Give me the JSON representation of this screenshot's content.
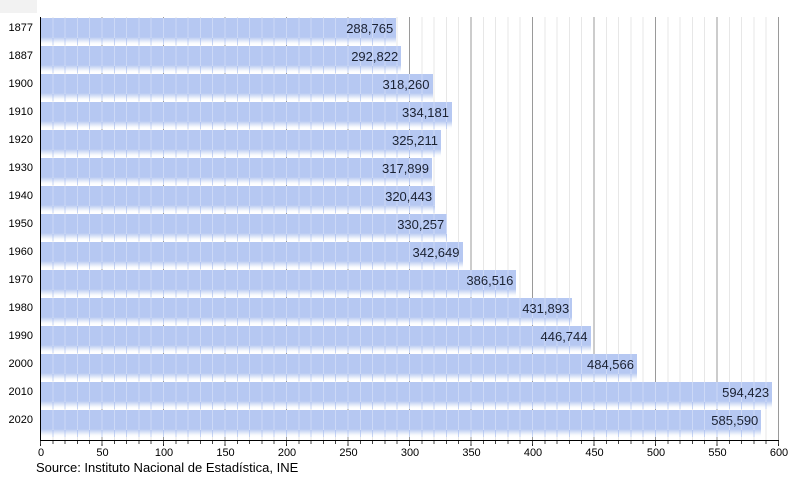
{
  "chart_data": {
    "type": "bar",
    "orientation": "horizontal",
    "title": "",
    "categories": [
      "1877",
      "1887",
      "1900",
      "1910",
      "1920",
      "1930",
      "1940",
      "1950",
      "1960",
      "1970",
      "1980",
      "1990",
      "2000",
      "2010",
      "2020"
    ],
    "values": [
      288765,
      292822,
      318260,
      334181,
      325211,
      317899,
      320443,
      330257,
      342649,
      386516,
      431893,
      446744,
      484566,
      594423,
      585590
    ],
    "value_labels": [
      "288,765",
      "292,822",
      "318,260",
      "334,181",
      "325,211",
      "317,899",
      "320,443",
      "330,257",
      "342,649",
      "386,516",
      "431,893",
      "446,744",
      "484,566",
      "594,423",
      "585,590"
    ],
    "xlim": [
      0,
      600
    ],
    "x_major_ticks": [
      0,
      50,
      100,
      150,
      200,
      250,
      300,
      350,
      400,
      450,
      500,
      550,
      600
    ],
    "x_minor_step": 10,
    "x_value_divisor": 1000,
    "grid": true,
    "legend": null,
    "bar_color": "#b6c8f2",
    "value_text_color": "#1b2233",
    "source_note": "Source: Instituto Nacional de Estadística, INE"
  }
}
